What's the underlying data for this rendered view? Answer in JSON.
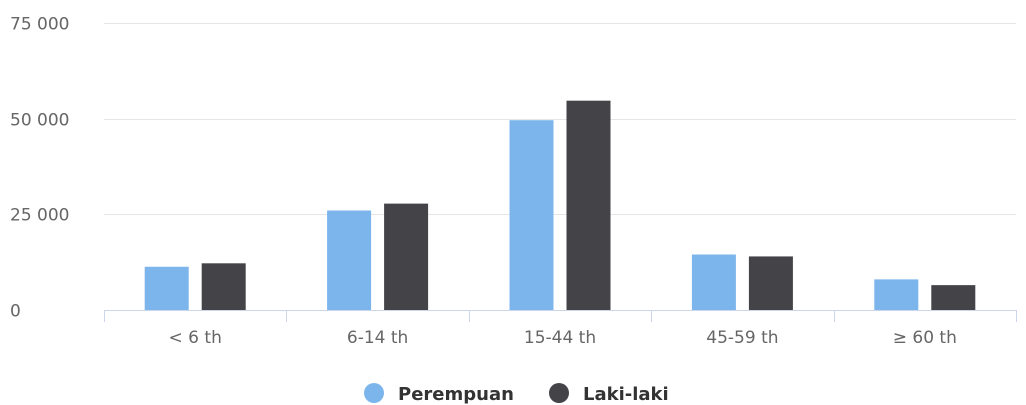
{
  "chart_data": {
    "type": "bar",
    "categories": [
      "< 6 th",
      "6-14 th",
      "15-44 th",
      "45-59 th",
      "≥ 60 th"
    ],
    "series": [
      {
        "name": "Perempuan",
        "color": "#7cb5ec",
        "values": [
          11300,
          26000,
          49600,
          14500,
          8000
        ]
      },
      {
        "name": "Laki-laki",
        "color": "#434348",
        "values": [
          12200,
          27800,
          54700,
          14000,
          6500
        ]
      }
    ],
    "yticks": [
      0,
      25000,
      50000,
      75000
    ],
    "ytick_labels": [
      "0",
      "25 000",
      "50 000",
      "75 000"
    ],
    "ylim": [
      0,
      75000
    ],
    "grid": true,
    "legend": "bottom-center",
    "title": "",
    "xlabel": "",
    "ylabel": ""
  }
}
